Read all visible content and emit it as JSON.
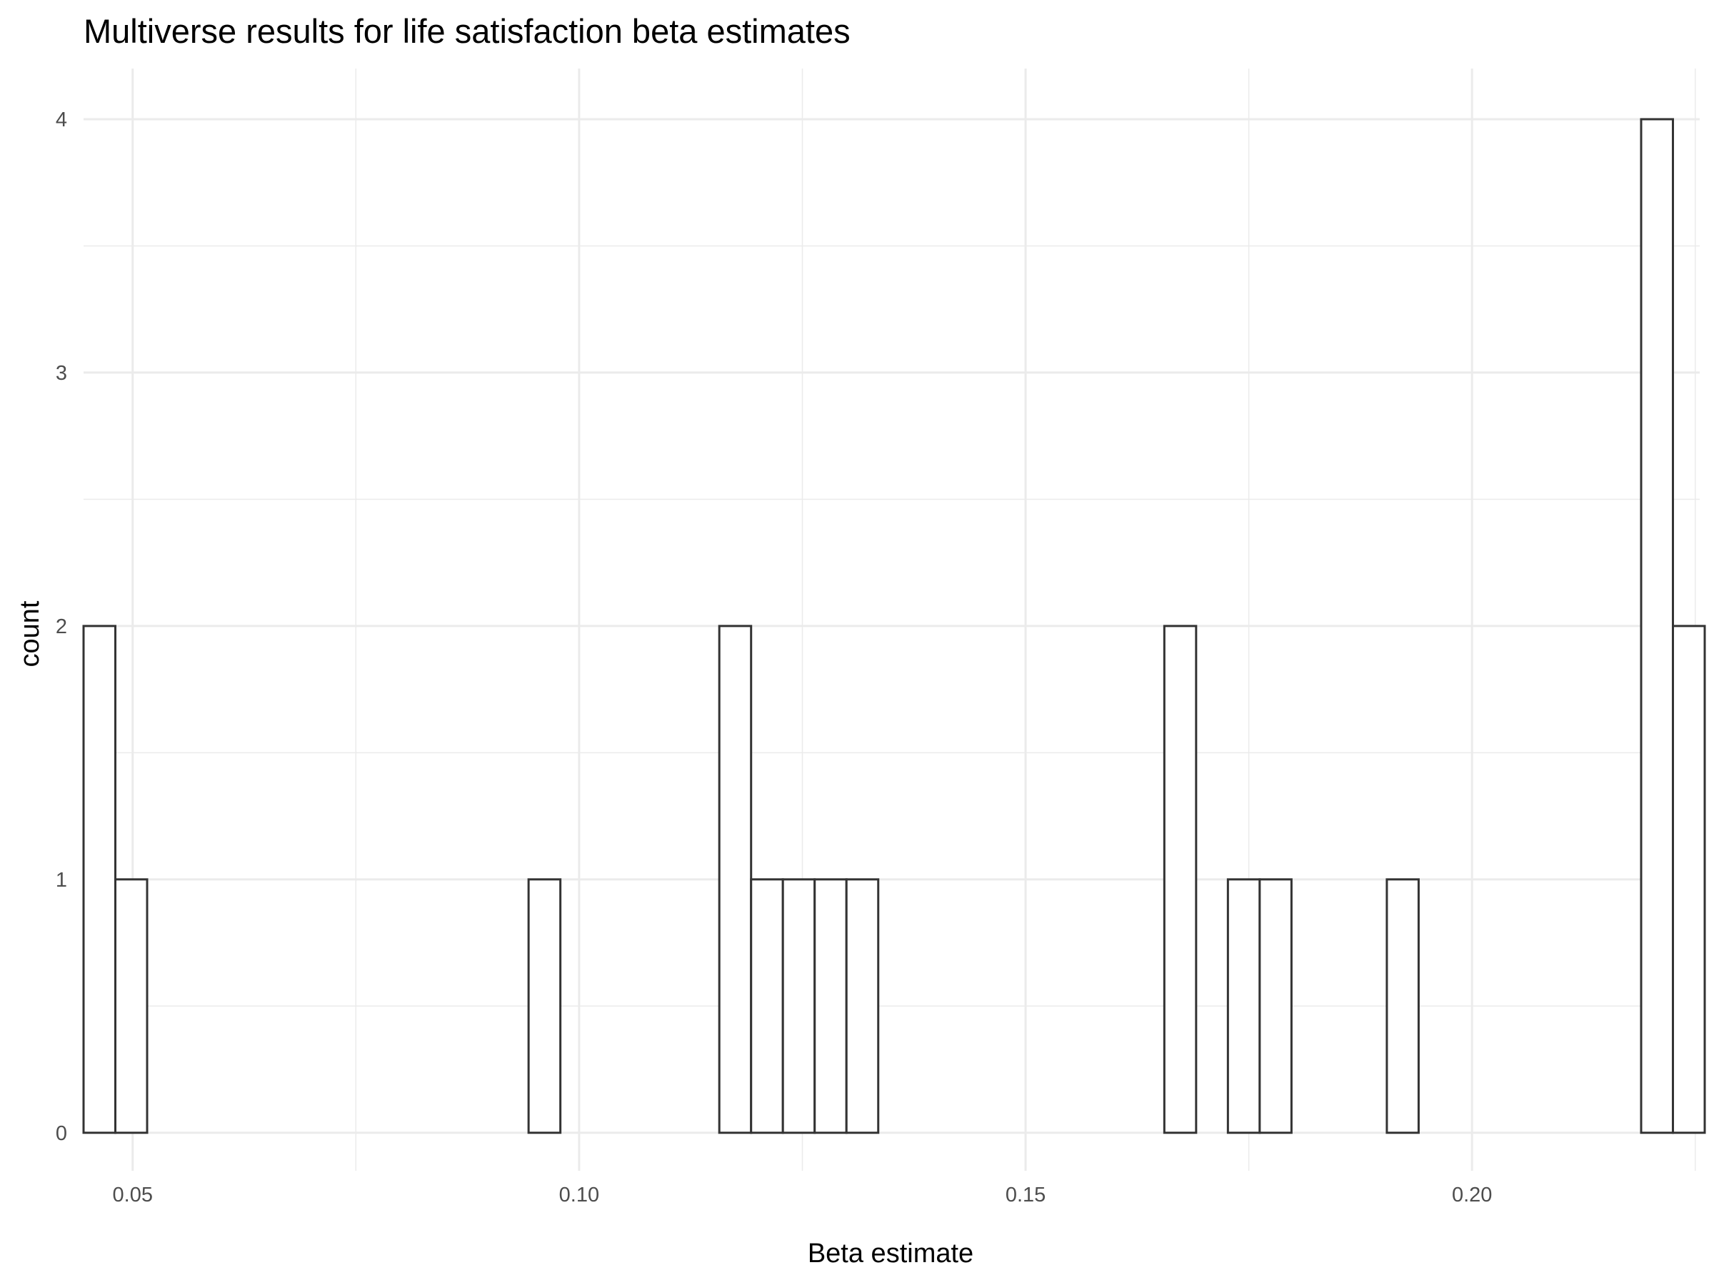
{
  "chart_data": {
    "type": "bar",
    "title": "Multiverse results for life satisfaction beta estimates",
    "xlabel": "Beta estimate",
    "ylabel": "count",
    "xlim": [
      0.0445,
      0.2255
    ],
    "ylim": [
      -0.15,
      4.2
    ],
    "x_ticks": [
      0.05,
      0.1,
      0.15,
      0.2
    ],
    "x_tick_labels": [
      "0.05",
      "0.10",
      "0.15",
      "0.20"
    ],
    "y_ticks": [
      0,
      1,
      2,
      3,
      4
    ],
    "y_tick_labels": [
      "0",
      "1",
      "2",
      "3",
      "4"
    ],
    "grid": true,
    "bin_width": 0.00356,
    "bin_start": 0.0445,
    "counts": [
      2,
      1,
      0,
      0,
      0,
      0,
      0,
      0,
      0,
      0,
      0,
      0,
      0,
      0,
      1,
      0,
      0,
      0,
      0,
      0,
      2,
      1,
      1,
      1,
      1,
      0,
      0,
      0,
      0,
      0,
      0,
      0,
      0,
      0,
      2,
      0,
      1,
      1,
      0,
      0,
      0,
      1,
      0,
      0,
      0,
      0,
      0,
      0,
      0,
      4,
      2
    ]
  }
}
